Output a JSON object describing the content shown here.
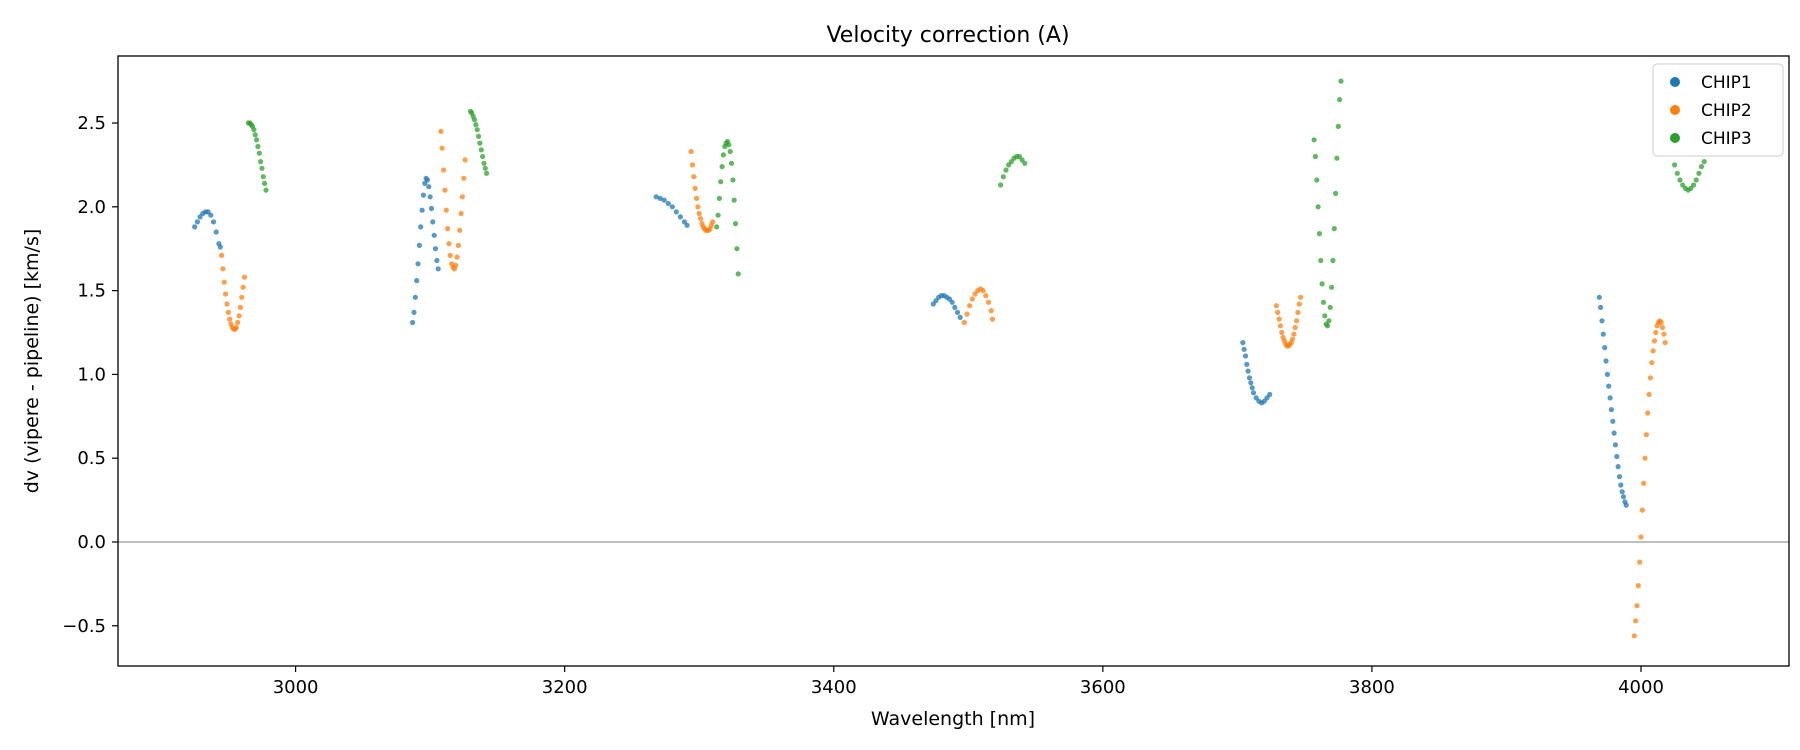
{
  "chart_data": {
    "type": "scatter",
    "title": "Velocity correction (A)",
    "xlabel": "Wavelength [nm]",
    "ylabel": "dv (vipere - pipeline) [km/s]",
    "xlim": [
      2868,
      4110
    ],
    "ylim": [
      -0.74,
      2.9
    ],
    "x_ticks": [
      3000,
      3200,
      3400,
      3600,
      3800,
      4000
    ],
    "x_tick_labels": [
      "3000",
      "3200",
      "3400",
      "3600",
      "3800",
      "4000"
    ],
    "y_ticks": [
      -0.5,
      0.0,
      0.5,
      1.0,
      1.5,
      2.0,
      2.5
    ],
    "y_tick_labels": [
      "−0.5",
      "0.0",
      "0.5",
      "1.0",
      "1.5",
      "2.0",
      "2.5"
    ],
    "grid": false,
    "zero_line": true,
    "legend_position": "top-right",
    "series": [
      {
        "name": "CHIP1",
        "color": "#1f77b4",
        "points": [
          [
            2925,
            1.88
          ],
          [
            2927,
            1.91
          ],
          [
            2929,
            1.94
          ],
          [
            2931,
            1.96
          ],
          [
            2933,
            1.97
          ],
          [
            2935,
            1.97
          ],
          [
            2937,
            1.95
          ],
          [
            2939,
            1.91
          ],
          [
            2941,
            1.85
          ],
          [
            2943,
            1.78
          ],
          [
            2944,
            1.76
          ],
          [
            3087,
            1.31
          ],
          [
            3088,
            1.37
          ],
          [
            3089,
            1.46
          ],
          [
            3090,
            1.56
          ],
          [
            3091,
            1.66
          ],
          [
            3092,
            1.77
          ],
          [
            3093,
            1.88
          ],
          [
            3094,
            1.98
          ],
          [
            3095,
            2.07
          ],
          [
            3096,
            2.14
          ],
          [
            3097,
            2.17
          ],
          [
            3098,
            2.16
          ],
          [
            3099,
            2.12
          ],
          [
            3100,
            2.06
          ],
          [
            3101,
            1.99
          ],
          [
            3102,
            1.91
          ],
          [
            3103,
            1.83
          ],
          [
            3104,
            1.75
          ],
          [
            3105,
            1.68
          ],
          [
            3106,
            1.63
          ],
          [
            3268,
            2.06
          ],
          [
            3271,
            2.05
          ],
          [
            3274,
            2.04
          ],
          [
            3277,
            2.02
          ],
          [
            3280,
            2.0
          ],
          [
            3283,
            1.97
          ],
          [
            3286,
            1.94
          ],
          [
            3289,
            1.91
          ],
          [
            3291,
            1.89
          ],
          [
            3474,
            1.42
          ],
          [
            3476,
            1.44
          ],
          [
            3478,
            1.46
          ],
          [
            3480,
            1.47
          ],
          [
            3482,
            1.47
          ],
          [
            3484,
            1.46
          ],
          [
            3486,
            1.45
          ],
          [
            3488,
            1.43
          ],
          [
            3490,
            1.4
          ],
          [
            3492,
            1.37
          ],
          [
            3494,
            1.34
          ],
          [
            3704,
            1.19
          ],
          [
            3705,
            1.15
          ],
          [
            3706,
            1.11
          ],
          [
            3707,
            1.06
          ],
          [
            3708,
            1.02
          ],
          [
            3709,
            0.98
          ],
          [
            3710,
            0.95
          ],
          [
            3711,
            0.92
          ],
          [
            3712,
            0.89
          ],
          [
            3714,
            0.86
          ],
          [
            3716,
            0.84
          ],
          [
            3718,
            0.83
          ],
          [
            3720,
            0.84
          ],
          [
            3722,
            0.86
          ],
          [
            3724,
            0.88
          ],
          [
            3969,
            1.46
          ],
          [
            3970,
            1.4
          ],
          [
            3971,
            1.32
          ],
          [
            3972,
            1.24
          ],
          [
            3973,
            1.16
          ],
          [
            3974,
            1.08
          ],
          [
            3975,
            1.0
          ],
          [
            3976,
            0.93
          ],
          [
            3977,
            0.86
          ],
          [
            3978,
            0.79
          ],
          [
            3979,
            0.72
          ],
          [
            3980,
            0.65
          ],
          [
            3981,
            0.58
          ],
          [
            3982,
            0.51
          ],
          [
            3983,
            0.45
          ],
          [
            3984,
            0.39
          ],
          [
            3985,
            0.34
          ],
          [
            3986,
            0.3
          ],
          [
            3987,
            0.27
          ],
          [
            3988,
            0.24
          ],
          [
            3989,
            0.22
          ]
        ]
      },
      {
        "name": "CHIP2",
        "color": "#ff7f0e",
        "points": [
          [
            2945,
            1.71
          ],
          [
            2946,
            1.63
          ],
          [
            2947,
            1.55
          ],
          [
            2948,
            1.48
          ],
          [
            2949,
            1.42
          ],
          [
            2950,
            1.37
          ],
          [
            2951,
            1.33
          ],
          [
            2952,
            1.3
          ],
          [
            2953,
            1.28
          ],
          [
            2954,
            1.27
          ],
          [
            2955,
            1.27
          ],
          [
            2956,
            1.28
          ],
          [
            2957,
            1.31
          ],
          [
            2958,
            1.35
          ],
          [
            2959,
            1.4
          ],
          [
            2960,
            1.46
          ],
          [
            2961,
            1.52
          ],
          [
            2962,
            1.58
          ],
          [
            3108,
            2.45
          ],
          [
            3109,
            2.35
          ],
          [
            3110,
            2.22
          ],
          [
            3111,
            2.1
          ],
          [
            3112,
            1.98
          ],
          [
            3113,
            1.87
          ],
          [
            3114,
            1.78
          ],
          [
            3115,
            1.71
          ],
          [
            3116,
            1.66
          ],
          [
            3117,
            1.64
          ],
          [
            3118,
            1.63
          ],
          [
            3119,
            1.65
          ],
          [
            3120,
            1.7
          ],
          [
            3121,
            1.77
          ],
          [
            3122,
            1.86
          ],
          [
            3123,
            1.96
          ],
          [
            3124,
            2.06
          ],
          [
            3125,
            2.17
          ],
          [
            3126,
            2.28
          ],
          [
            3294,
            2.33
          ],
          [
            3295,
            2.25
          ],
          [
            3296,
            2.18
          ],
          [
            3297,
            2.11
          ],
          [
            3298,
            2.05
          ],
          [
            3299,
            2.0
          ],
          [
            3300,
            1.96
          ],
          [
            3301,
            1.93
          ],
          [
            3302,
            1.9
          ],
          [
            3303,
            1.88
          ],
          [
            3304,
            1.87
          ],
          [
            3305,
            1.86
          ],
          [
            3306,
            1.86
          ],
          [
            3307,
            1.86
          ],
          [
            3308,
            1.87
          ],
          [
            3309,
            1.89
          ],
          [
            3310,
            1.91
          ],
          [
            3497,
            1.31
          ],
          [
            3499,
            1.36
          ],
          [
            3501,
            1.41
          ],
          [
            3503,
            1.45
          ],
          [
            3505,
            1.48
          ],
          [
            3507,
            1.5
          ],
          [
            3509,
            1.51
          ],
          [
            3511,
            1.5
          ],
          [
            3513,
            1.47
          ],
          [
            3515,
            1.43
          ],
          [
            3517,
            1.38
          ],
          [
            3518,
            1.33
          ],
          [
            3729,
            1.41
          ],
          [
            3730,
            1.37
          ],
          [
            3731,
            1.33
          ],
          [
            3732,
            1.29
          ],
          [
            3733,
            1.25
          ],
          [
            3734,
            1.22
          ],
          [
            3735,
            1.2
          ],
          [
            3736,
            1.18
          ],
          [
            3737,
            1.17
          ],
          [
            3738,
            1.17
          ],
          [
            3739,
            1.18
          ],
          [
            3740,
            1.19
          ],
          [
            3741,
            1.21
          ],
          [
            3742,
            1.24
          ],
          [
            3743,
            1.28
          ],
          [
            3744,
            1.32
          ],
          [
            3745,
            1.37
          ],
          [
            3746,
            1.42
          ],
          [
            3747,
            1.46
          ],
          [
            3995,
            -0.56
          ],
          [
            3996,
            -0.47
          ],
          [
            3997,
            -0.38
          ],
          [
            3998,
            -0.26
          ],
          [
            3999,
            -0.12
          ],
          [
            4000,
            0.03
          ],
          [
            4001,
            0.19
          ],
          [
            4002,
            0.35
          ],
          [
            4003,
            0.5
          ],
          [
            4004,
            0.64
          ],
          [
            4005,
            0.77
          ],
          [
            4006,
            0.88
          ],
          [
            4007,
            0.98
          ],
          [
            4008,
            1.07
          ],
          [
            4009,
            1.14
          ],
          [
            4010,
            1.2
          ],
          [
            4011,
            1.25
          ],
          [
            4012,
            1.29
          ],
          [
            4013,
            1.31
          ],
          [
            4014,
            1.32
          ],
          [
            4015,
            1.31
          ],
          [
            4016,
            1.28
          ],
          [
            4017,
            1.24
          ],
          [
            4018,
            1.19
          ]
        ]
      },
      {
        "name": "CHIP3",
        "color": "#2ca02c",
        "points": [
          [
            2965,
            2.5
          ],
          [
            2966,
            2.5
          ],
          [
            2967,
            2.49
          ],
          [
            2968,
            2.48
          ],
          [
            2969,
            2.46
          ],
          [
            2970,
            2.43
          ],
          [
            2971,
            2.4
          ],
          [
            2972,
            2.36
          ],
          [
            2973,
            2.32
          ],
          [
            2974,
            2.27
          ],
          [
            2975,
            2.23
          ],
          [
            2976,
            2.18
          ],
          [
            2977,
            2.14
          ],
          [
            2978,
            2.1
          ],
          [
            3130,
            2.57
          ],
          [
            3131,
            2.56
          ],
          [
            3132,
            2.54
          ],
          [
            3133,
            2.52
          ],
          [
            3134,
            2.49
          ],
          [
            3135,
            2.46
          ],
          [
            3136,
            2.42
          ],
          [
            3137,
            2.38
          ],
          [
            3138,
            2.34
          ],
          [
            3139,
            2.3
          ],
          [
            3140,
            2.26
          ],
          [
            3141,
            2.23
          ],
          [
            3142,
            2.2
          ],
          [
            3313,
            1.88
          ],
          [
            3314,
            1.95
          ],
          [
            3315,
            2.05
          ],
          [
            3316,
            2.15
          ],
          [
            3317,
            2.24
          ],
          [
            3318,
            2.31
          ],
          [
            3319,
            2.36
          ],
          [
            3320,
            2.38
          ],
          [
            3321,
            2.39
          ],
          [
            3322,
            2.37
          ],
          [
            3323,
            2.33
          ],
          [
            3324,
            2.26
          ],
          [
            3325,
            2.16
          ],
          [
            3326,
            2.04
          ],
          [
            3327,
            1.9
          ],
          [
            3328,
            1.75
          ],
          [
            3329,
            1.6
          ],
          [
            3524,
            2.13
          ],
          [
            3526,
            2.18
          ],
          [
            3528,
            2.22
          ],
          [
            3530,
            2.25
          ],
          [
            3532,
            2.27
          ],
          [
            3534,
            2.29
          ],
          [
            3536,
            2.3
          ],
          [
            3538,
            2.3
          ],
          [
            3540,
            2.28
          ],
          [
            3542,
            2.26
          ],
          [
            3757,
            2.4
          ],
          [
            3758,
            2.3
          ],
          [
            3759,
            2.16
          ],
          [
            3760,
            2.0
          ],
          [
            3761,
            1.84
          ],
          [
            3762,
            1.68
          ],
          [
            3763,
            1.54
          ],
          [
            3764,
            1.43
          ],
          [
            3765,
            1.35
          ],
          [
            3766,
            1.3
          ],
          [
            3767,
            1.29
          ],
          [
            3768,
            1.32
          ],
          [
            3769,
            1.4
          ],
          [
            3770,
            1.52
          ],
          [
            3771,
            1.68
          ],
          [
            3772,
            1.87
          ],
          [
            3773,
            2.08
          ],
          [
            3774,
            2.29
          ],
          [
            3775,
            2.48
          ],
          [
            3776,
            2.64
          ],
          [
            3777,
            2.75
          ],
          [
            4025,
            2.25
          ],
          [
            4027,
            2.2
          ],
          [
            4029,
            2.16
          ],
          [
            4031,
            2.13
          ],
          [
            4033,
            2.11
          ],
          [
            4035,
            2.1
          ],
          [
            4037,
            2.11
          ],
          [
            4039,
            2.13
          ],
          [
            4041,
            2.16
          ],
          [
            4043,
            2.2
          ],
          [
            4045,
            2.24
          ],
          [
            4047,
            2.27
          ]
        ]
      }
    ]
  }
}
